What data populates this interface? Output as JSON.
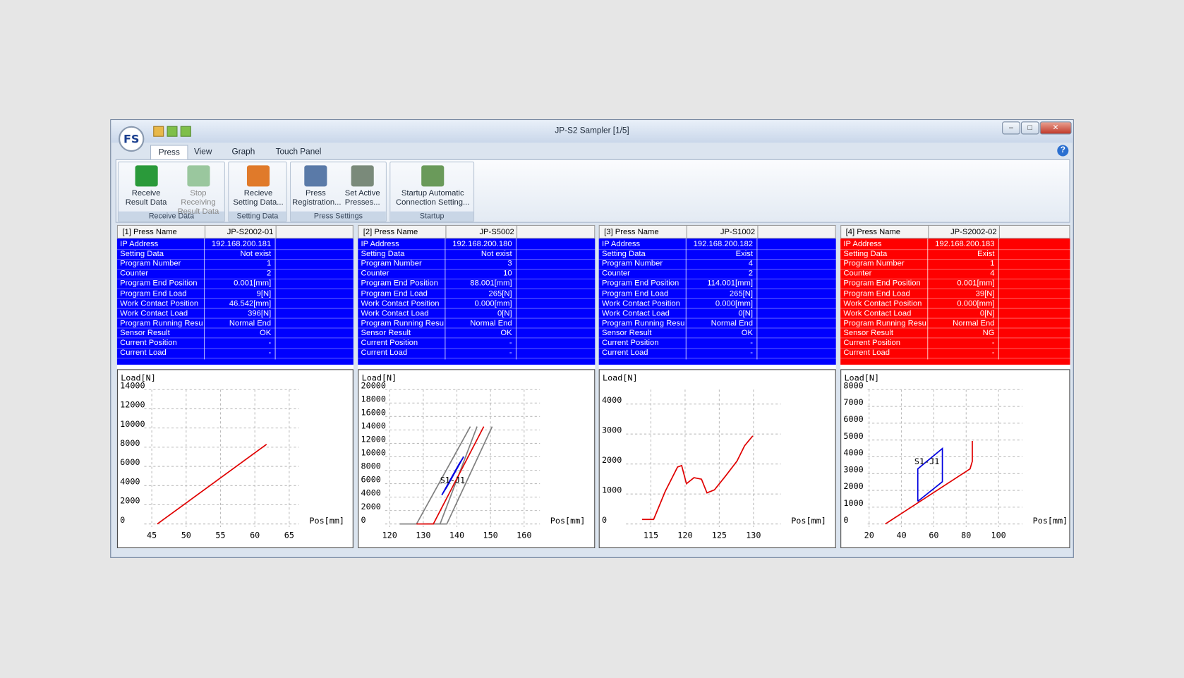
{
  "window": {
    "title": "JP-S2 Sampler [1/5]",
    "logo": "FS"
  },
  "tabs": [
    "Press",
    "View",
    "Graph",
    "Touch Panel"
  ],
  "ribbon": [
    {
      "label": "Receive Data",
      "buttons": [
        {
          "lines": [
            "Receive",
            "Result Data"
          ]
        },
        {
          "lines": [
            "Stop Receiving",
            "Result Data"
          ],
          "disabled": true
        }
      ]
    },
    {
      "label": "Setting Data",
      "buttons": [
        {
          "lines": [
            "Recieve",
            "Setting Data..."
          ]
        }
      ]
    },
    {
      "label": "Press Settings",
      "buttons": [
        {
          "lines": [
            "Press",
            "Registration..."
          ]
        },
        {
          "lines": [
            "Set Active",
            "Presses..."
          ]
        }
      ]
    },
    {
      "label": "Startup",
      "buttons": [
        {
          "lines": [
            "Startup Automatic",
            "Connection Setting..."
          ]
        }
      ]
    }
  ],
  "panels": [
    {
      "header": [
        "[1] Press Name",
        "JP-S2002-01"
      ],
      "color": "#0000ff",
      "rows": [
        [
          "IP Address",
          "192.168.200.181"
        ],
        [
          "Setting Data",
          "Not exist"
        ],
        [
          "Program Number",
          "1"
        ],
        [
          "Counter",
          "2"
        ],
        [
          "Program End Position",
          "0.001[mm]"
        ],
        [
          "Program End Load",
          "9[N]"
        ],
        [
          "Work Contact Position",
          "46.542[mm]"
        ],
        [
          "Work Contact Load",
          "396[N]"
        ],
        [
          "Program Running Result",
          "Normal End"
        ],
        [
          "Sensor Result",
          "OK"
        ],
        [
          "Current Position",
          "-"
        ],
        [
          "Current Load",
          "-"
        ]
      ],
      "chart": {
        "type": "line",
        "y_label": "Load[N]",
        "x_label": "Pos[mm]",
        "xlim": [
          43.9,
          66.43
        ],
        "ylim": [
          -316,
          14000
        ],
        "xticks": [
          45,
          50,
          55,
          60,
          65
        ],
        "yticks": [
          0,
          2000,
          4000,
          6000,
          8000,
          10000,
          12000,
          14000
        ],
        "series": [
          {
            "color": "#e00000",
            "x": [
              45.8,
              61.7
            ],
            "y": [
              0,
              8300
            ]
          }
        ]
      }
    },
    {
      "header": [
        "[2] Press Name",
        "JP-S5002"
      ],
      "color": "#0000ff",
      "rows": [
        [
          "IP Address",
          "192.168.200.180"
        ],
        [
          "Setting Data",
          "Not exist"
        ],
        [
          "Program Number",
          "3"
        ],
        [
          "Counter",
          "10"
        ],
        [
          "Program End Position",
          "88.001[mm]"
        ],
        [
          "Program End Load",
          "265[N]"
        ],
        [
          "Work Contact Position",
          "0.000[mm]"
        ],
        [
          "Work Contact Load",
          "0[N]"
        ],
        [
          "Program Running Result",
          "Normal End"
        ],
        [
          "Sensor Result",
          "OK"
        ],
        [
          "Current Position",
          "-"
        ],
        [
          "Current Load",
          "-"
        ]
      ],
      "chart": {
        "type": "line",
        "y_label": "Load[N]",
        "x_label": "Pos[mm]",
        "xlim": [
          118.65,
          164.7
        ],
        "ylim": [
          -452,
          20000
        ],
        "xticks": [
          120,
          130,
          140,
          150,
          160
        ],
        "yticks": [
          0,
          2000,
          4000,
          6000,
          8000,
          10000,
          12000,
          14000,
          16000,
          18000,
          20000
        ],
        "series": [
          {
            "color": "#808080",
            "x": [
              123,
              128,
              144
            ],
            "y": [
              0,
              0,
              14500
            ]
          },
          {
            "color": "#808080",
            "x": [
              130,
              135,
              146
            ],
            "y": [
              0,
              0,
              14500
            ]
          },
          {
            "color": "#808080",
            "x": [
              131,
              137,
              150.5
            ],
            "y": [
              0,
              0,
              14500
            ]
          },
          {
            "color": "#e00000",
            "x": [
              128,
              133,
              148
            ],
            "y": [
              0,
              0,
              14500
            ]
          },
          {
            "color": "#0000e0",
            "x": [
              135.5,
              137,
              142,
              140.5,
              135.5
            ],
            "y": [
              4300,
              5500,
              10000,
              8800,
              4300
            ]
          }
        ],
        "annotation": {
          "text": "S1-J1",
          "x": 135,
          "y": 6500
        }
      }
    },
    {
      "header": [
        "[3] Press Name",
        "JP-S1002"
      ],
      "color": "#0000ff",
      "rows": [
        [
          "IP Address",
          "192.168.200.182"
        ],
        [
          "Setting Data",
          "Exist"
        ],
        [
          "Program Number",
          "4"
        ],
        [
          "Counter",
          "2"
        ],
        [
          "Program End Position",
          "114.001[mm]"
        ],
        [
          "Program End Load",
          "265[N]"
        ],
        [
          "Work Contact Position",
          "0.000[mm]"
        ],
        [
          "Work Contact Load",
          "0[N]"
        ],
        [
          "Program Running Result",
          "Normal End"
        ],
        [
          "Sensor Result",
          "OK"
        ],
        [
          "Current Position",
          "-"
        ],
        [
          "Current Load",
          "-"
        ]
      ],
      "chart": {
        "type": "line",
        "y_label": "Load[N]",
        "x_label": "Pos[mm]",
        "xlim": [
          111.36,
          134
        ],
        "ylim": [
          -101,
          4481
        ],
        "xticks": [
          115,
          120,
          125,
          130
        ],
        "yticks": [
          0,
          1000,
          2000,
          3000,
          4000
        ],
        "series": [
          {
            "color": "#e00000",
            "x": [
              113.7,
              115.4,
              117.1,
              118.9,
              119.5,
              120.2,
              121.3,
              122.4,
              123.2,
              124.3,
              125.9,
              127.6,
              128.7,
              129.9
            ],
            "y": [
              152,
              152,
              1089,
              1899,
              1949,
              1342,
              1544,
              1494,
              1038,
              1139,
              1595,
              2101,
              2608,
              2937
            ]
          }
        ]
      }
    },
    {
      "header": [
        "[4] Press Name",
        "JP-S2002-02"
      ],
      "color": "#ff0000",
      "rows": [
        [
          "IP Address",
          "192.168.200.183"
        ],
        [
          "Setting Data",
          "Exist"
        ],
        [
          "Program Number",
          "1"
        ],
        [
          "Counter",
          "4"
        ],
        [
          "Program End Position",
          "0.001[mm]"
        ],
        [
          "Program End Load",
          "39[N]"
        ],
        [
          "Work Contact Position",
          "0.000[mm]"
        ],
        [
          "Work Contact Load",
          "0[N]"
        ],
        [
          "Program Running Result",
          "Normal End"
        ],
        [
          "Sensor Result",
          "NG"
        ],
        [
          "Current Position",
          "-"
        ],
        [
          "Current Load",
          "-"
        ]
      ],
      "chart": {
        "type": "line",
        "y_label": "Load[N]",
        "x_label": "Pos[mm]",
        "xlim": [
          19.1,
          114.8
        ],
        "ylim": [
          -180,
          8000
        ],
        "xticks": [
          20,
          40,
          60,
          80,
          100
        ],
        "yticks": [
          0,
          1000,
          2000,
          3000,
          4000,
          5000,
          6000,
          7000,
          8000
        ],
        "series": [
          {
            "color": "#e00000",
            "x": [
              30,
              82.4,
              83.8,
              83.8
            ],
            "y": [
              0,
              3281,
              3730,
              4944
            ]
          },
          {
            "color": "#0000e0",
            "x": [
              50.1,
              50.1,
              65.3,
              65.3,
              50.1
            ],
            "y": [
              1348,
              3281,
              4494,
              2517,
              1348
            ]
          }
        ],
        "annotation": {
          "text": "S1-J1",
          "x": 48,
          "y": 3700
        }
      }
    }
  ]
}
